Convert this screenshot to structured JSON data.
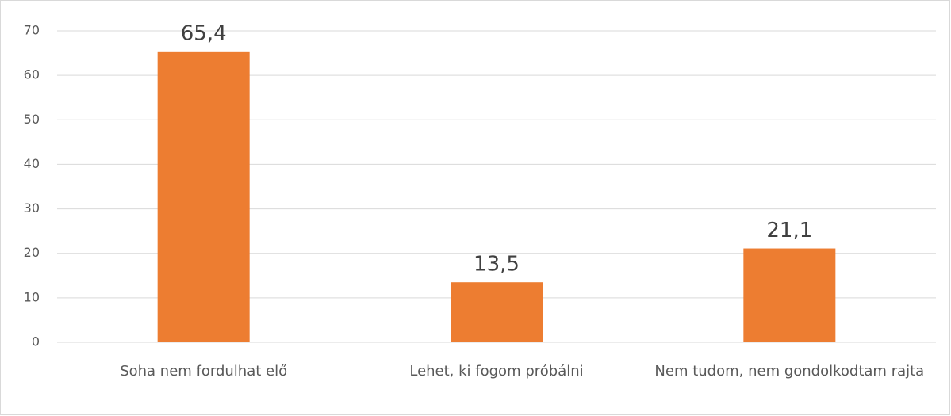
{
  "chart_data": {
    "type": "bar",
    "categories": [
      "Soha nem fordulhat elő",
      "Lehet, ki fogom próbálni",
      "Nem tudom, nem gondolkodtam rajta"
    ],
    "values": [
      65.4,
      13.5,
      21.1
    ],
    "value_labels": [
      "65,4",
      "13,5",
      "21,1"
    ],
    "color": "#ed7d31",
    "ylim": [
      0,
      70
    ],
    "yticks": [
      0,
      10,
      20,
      30,
      40,
      50,
      60,
      70
    ],
    "grid": true
  }
}
